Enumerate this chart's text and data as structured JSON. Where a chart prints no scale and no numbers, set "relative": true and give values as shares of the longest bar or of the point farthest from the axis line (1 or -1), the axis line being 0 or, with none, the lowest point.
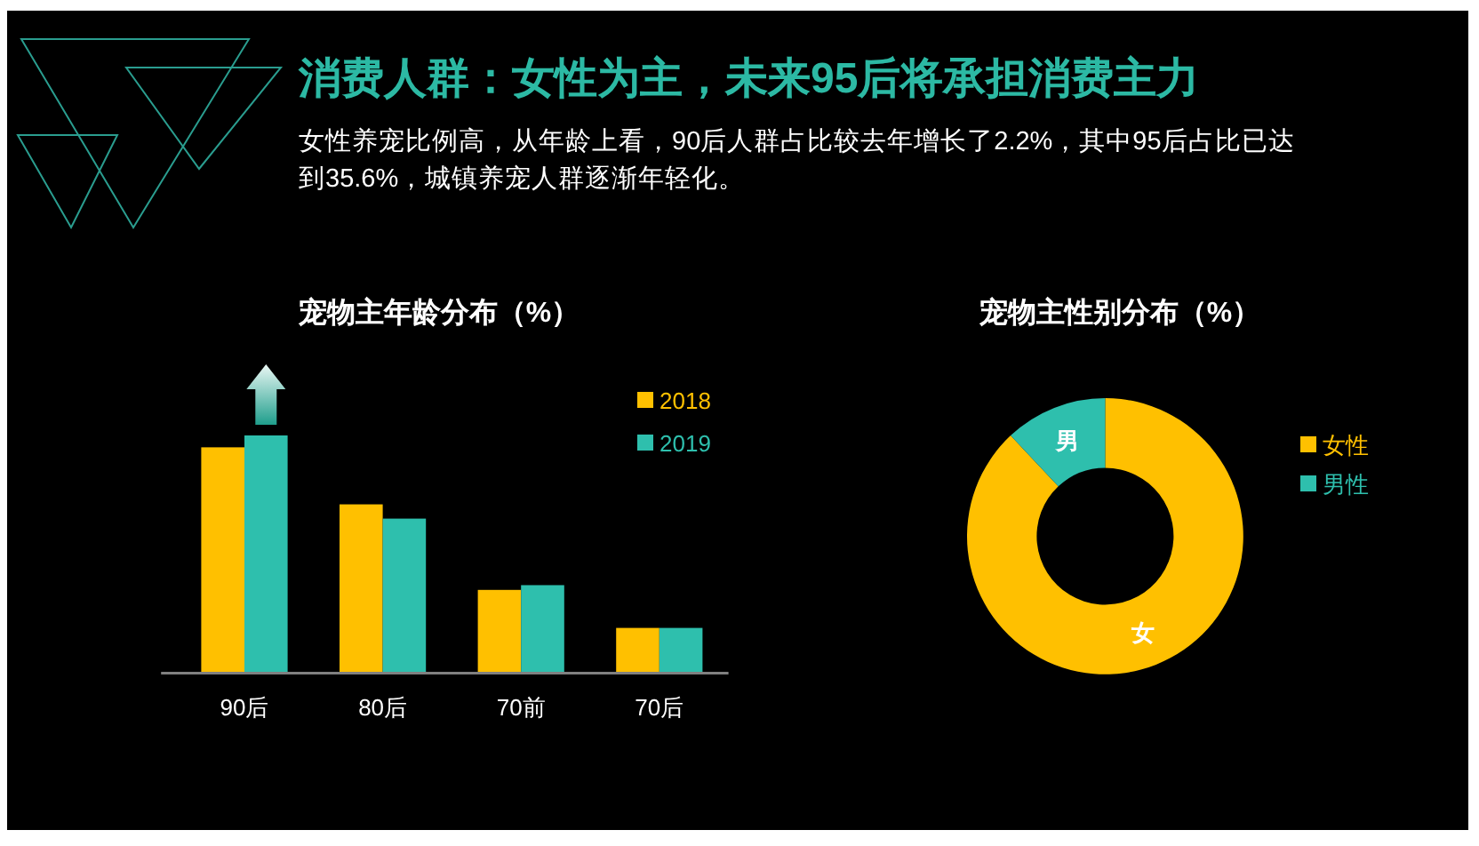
{
  "chart_data": [
    {
      "type": "bar",
      "title": "宠物主年龄分布（%）",
      "annotations": [
        "消费人群：女性为主，未来95后将承担消费主力",
        "女性养宠比例高，从年龄上看，90后人群占比较去年增长了2.2%，其中95后占比已达到35.6%，城镇养宠人群逐渐年轻化。"
      ],
      "categories": [
        "90后",
        "80后",
        "70前",
        "70后"
      ],
      "series": [
        {
          "name": "2018",
          "color": "#ffc000",
          "values": [
            0.95,
            0.71,
            0.35,
            0.19
          ]
        },
        {
          "name": "2019",
          "color": "#2ebfad",
          "values": [
            1,
            0.65,
            0.37,
            0.19
          ]
        }
      ],
      "relative": true,
      "legend": "top right"
    },
    {
      "type": "donut",
      "title": "宠物主性别分布（%）",
      "categories": [
        "女性",
        "男性"
      ],
      "values": [
        88,
        12
      ],
      "colors": [
        "#ffc000",
        "#2ebfad"
      ],
      "value_labels": [
        "女",
        "男"
      ],
      "legend": "right"
    }
  ]
}
